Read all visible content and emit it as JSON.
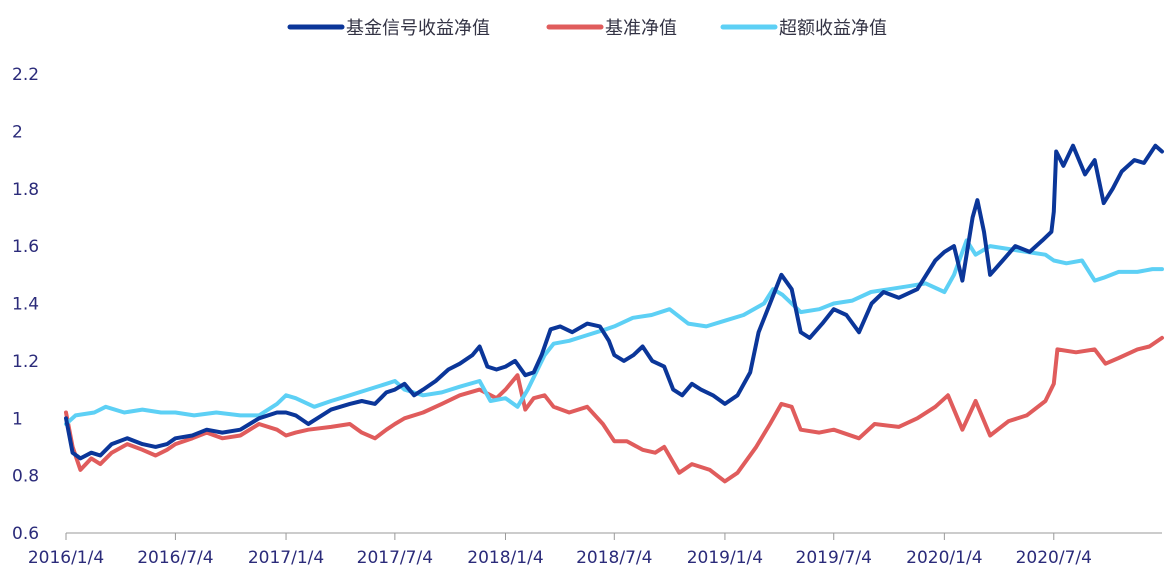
{
  "chart_data": {
    "type": "line",
    "title": "",
    "xlabel": "",
    "ylabel": "",
    "ylim": [
      0.6,
      2.2
    ],
    "yticks": [
      0.6,
      0.8,
      1,
      1.2,
      1.4,
      1.6,
      1.8,
      2,
      2.2
    ],
    "ytick_labels": [
      "0.6",
      "0.8",
      "1",
      "1.2",
      "1.4",
      "1.6",
      "1.8",
      "2",
      "2.2"
    ],
    "xlim": [
      "2016-01-04",
      "2020-12-31"
    ],
    "xticks": [
      "2016-01-04",
      "2016-07-04",
      "2017-01-04",
      "2017-07-04",
      "2018-01-04",
      "2018-07-04",
      "2019-01-04",
      "2019-07-04",
      "2020-01-04",
      "2020-07-04"
    ],
    "xtick_labels": [
      "2016/1/4",
      "2016/7/4",
      "2017/1/4",
      "2017/7/4",
      "2018/1/4",
      "2018/7/4",
      "2019/1/4",
      "2019/7/4",
      "2020/1/4",
      "2020/7/4"
    ],
    "grid": false,
    "legend_position": "top",
    "series": [
      {
        "name": "基金信号收益净值",
        "color": "#0b3699",
        "points": [
          [
            "2016-01-04",
            1.0
          ],
          [
            "2016-01-15",
            0.88
          ],
          [
            "2016-01-28",
            0.86
          ],
          [
            "2016-02-15",
            0.88
          ],
          [
            "2016-03-01",
            0.87
          ],
          [
            "2016-03-20",
            0.91
          ],
          [
            "2016-04-15",
            0.93
          ],
          [
            "2016-05-10",
            0.91
          ],
          [
            "2016-06-01",
            0.9
          ],
          [
            "2016-06-20",
            0.91
          ],
          [
            "2016-07-04",
            0.93
          ],
          [
            "2016-08-01",
            0.94
          ],
          [
            "2016-08-25",
            0.96
          ],
          [
            "2016-09-20",
            0.95
          ],
          [
            "2016-10-20",
            0.96
          ],
          [
            "2016-11-20",
            1.0
          ],
          [
            "2016-12-20",
            1.02
          ],
          [
            "2017-01-04",
            1.02
          ],
          [
            "2017-01-20",
            1.01
          ],
          [
            "2017-02-10",
            0.98
          ],
          [
            "2017-02-25",
            1.0
          ],
          [
            "2017-03-20",
            1.03
          ],
          [
            "2017-04-20",
            1.05
          ],
          [
            "2017-05-10",
            1.06
          ],
          [
            "2017-06-01",
            1.05
          ],
          [
            "2017-06-20",
            1.09
          ],
          [
            "2017-07-04",
            1.1
          ],
          [
            "2017-07-20",
            1.12
          ],
          [
            "2017-08-05",
            1.08
          ],
          [
            "2017-08-20",
            1.1
          ],
          [
            "2017-09-10",
            1.13
          ],
          [
            "2017-10-01",
            1.17
          ],
          [
            "2017-10-20",
            1.19
          ],
          [
            "2017-11-10",
            1.22
          ],
          [
            "2017-11-22",
            1.25
          ],
          [
            "2017-12-05",
            1.18
          ],
          [
            "2017-12-20",
            1.17
          ],
          [
            "2018-01-04",
            1.18
          ],
          [
            "2018-01-20",
            1.2
          ],
          [
            "2018-02-06",
            1.15
          ],
          [
            "2018-02-20",
            1.16
          ],
          [
            "2018-03-05",
            1.22
          ],
          [
            "2018-03-20",
            1.31
          ],
          [
            "2018-04-05",
            1.32
          ],
          [
            "2018-04-25",
            1.3
          ],
          [
            "2018-05-20",
            1.33
          ],
          [
            "2018-06-10",
            1.32
          ],
          [
            "2018-06-25",
            1.27
          ],
          [
            "2018-07-04",
            1.22
          ],
          [
            "2018-07-20",
            1.2
          ],
          [
            "2018-08-05",
            1.22
          ],
          [
            "2018-08-20",
            1.25
          ],
          [
            "2018-09-05",
            1.2
          ],
          [
            "2018-09-25",
            1.18
          ],
          [
            "2018-10-10",
            1.1
          ],
          [
            "2018-10-25",
            1.08
          ],
          [
            "2018-11-10",
            1.12
          ],
          [
            "2018-11-25",
            1.1
          ],
          [
            "2018-12-15",
            1.08
          ],
          [
            "2019-01-04",
            1.05
          ],
          [
            "2019-01-25",
            1.08
          ],
          [
            "2019-02-15",
            1.16
          ],
          [
            "2019-03-01",
            1.3
          ],
          [
            "2019-03-20",
            1.4
          ],
          [
            "2019-04-08",
            1.5
          ],
          [
            "2019-04-25",
            1.45
          ],
          [
            "2019-05-10",
            1.3
          ],
          [
            "2019-05-25",
            1.28
          ],
          [
            "2019-06-15",
            1.33
          ],
          [
            "2019-07-04",
            1.38
          ],
          [
            "2019-07-25",
            1.36
          ],
          [
            "2019-08-15",
            1.3
          ],
          [
            "2019-09-05",
            1.4
          ],
          [
            "2019-09-25",
            1.44
          ],
          [
            "2019-10-20",
            1.42
          ],
          [
            "2019-11-20",
            1.45
          ],
          [
            "2019-12-20",
            1.55
          ],
          [
            "2020-01-04",
            1.58
          ],
          [
            "2020-01-20",
            1.6
          ],
          [
            "2020-02-03",
            1.48
          ],
          [
            "2020-02-20",
            1.7
          ],
          [
            "2020-02-28",
            1.76
          ],
          [
            "2020-03-10",
            1.65
          ],
          [
            "2020-03-20",
            1.5
          ],
          [
            "2020-04-10",
            1.55
          ],
          [
            "2020-05-01",
            1.6
          ],
          [
            "2020-05-25",
            1.58
          ],
          [
            "2020-06-15",
            1.62
          ],
          [
            "2020-06-30",
            1.65
          ],
          [
            "2020-07-04",
            1.72
          ],
          [
            "2020-07-08",
            1.93
          ],
          [
            "2020-07-20",
            1.88
          ],
          [
            "2020-08-05",
            1.95
          ],
          [
            "2020-08-25",
            1.85
          ],
          [
            "2020-09-10",
            1.9
          ],
          [
            "2020-09-25",
            1.75
          ],
          [
            "2020-10-10",
            1.8
          ],
          [
            "2020-10-25",
            1.86
          ],
          [
            "2020-11-15",
            1.9
          ],
          [
            "2020-12-01",
            1.89
          ],
          [
            "2020-12-20",
            1.95
          ],
          [
            "2020-12-31",
            1.93
          ]
        ]
      },
      {
        "name": "基准净值",
        "color": "#e05c5c",
        "points": [
          [
            "2016-01-04",
            1.02
          ],
          [
            "2016-01-15",
            0.9
          ],
          [
            "2016-01-28",
            0.82
          ],
          [
            "2016-02-15",
            0.86
          ],
          [
            "2016-03-01",
            0.84
          ],
          [
            "2016-03-20",
            0.88
          ],
          [
            "2016-04-15",
            0.91
          ],
          [
            "2016-05-10",
            0.89
          ],
          [
            "2016-06-01",
            0.87
          ],
          [
            "2016-06-20",
            0.89
          ],
          [
            "2016-07-04",
            0.91
          ],
          [
            "2016-08-01",
            0.93
          ],
          [
            "2016-08-25",
            0.95
          ],
          [
            "2016-09-20",
            0.93
          ],
          [
            "2016-10-20",
            0.94
          ],
          [
            "2016-11-20",
            0.98
          ],
          [
            "2016-12-20",
            0.96
          ],
          [
            "2017-01-04",
            0.94
          ],
          [
            "2017-01-20",
            0.95
          ],
          [
            "2017-02-10",
            0.96
          ],
          [
            "2017-03-20",
            0.97
          ],
          [
            "2017-04-20",
            0.98
          ],
          [
            "2017-05-10",
            0.95
          ],
          [
            "2017-06-01",
            0.93
          ],
          [
            "2017-06-20",
            0.96
          ],
          [
            "2017-07-04",
            0.98
          ],
          [
            "2017-07-20",
            1.0
          ],
          [
            "2017-08-20",
            1.02
          ],
          [
            "2017-09-20",
            1.05
          ],
          [
            "2017-10-20",
            1.08
          ],
          [
            "2017-11-22",
            1.1
          ],
          [
            "2017-12-20",
            1.07
          ],
          [
            "2018-01-04",
            1.1
          ],
          [
            "2018-01-24",
            1.15
          ],
          [
            "2018-02-06",
            1.03
          ],
          [
            "2018-02-20",
            1.07
          ],
          [
            "2018-03-10",
            1.08
          ],
          [
            "2018-03-25",
            1.04
          ],
          [
            "2018-04-20",
            1.02
          ],
          [
            "2018-05-20",
            1.04
          ],
          [
            "2018-06-15",
            0.98
          ],
          [
            "2018-07-04",
            0.92
          ],
          [
            "2018-07-25",
            0.92
          ],
          [
            "2018-08-20",
            0.89
          ],
          [
            "2018-09-10",
            0.88
          ],
          [
            "2018-09-25",
            0.9
          ],
          [
            "2018-10-20",
            0.81
          ],
          [
            "2018-11-10",
            0.84
          ],
          [
            "2018-12-10",
            0.82
          ],
          [
            "2019-01-04",
            0.78
          ],
          [
            "2019-01-25",
            0.81
          ],
          [
            "2019-02-25",
            0.9
          ],
          [
            "2019-03-20",
            0.98
          ],
          [
            "2019-04-08",
            1.05
          ],
          [
            "2019-04-25",
            1.04
          ],
          [
            "2019-05-10",
            0.96
          ],
          [
            "2019-06-10",
            0.95
          ],
          [
            "2019-07-04",
            0.96
          ],
          [
            "2019-08-15",
            0.93
          ],
          [
            "2019-09-10",
            0.98
          ],
          [
            "2019-10-20",
            0.97
          ],
          [
            "2019-11-20",
            1.0
          ],
          [
            "2019-12-20",
            1.04
          ],
          [
            "2020-01-10",
            1.08
          ],
          [
            "2020-02-03",
            0.96
          ],
          [
            "2020-02-25",
            1.06
          ],
          [
            "2020-03-20",
            0.94
          ],
          [
            "2020-04-20",
            0.99
          ],
          [
            "2020-05-20",
            1.01
          ],
          [
            "2020-06-20",
            1.06
          ],
          [
            "2020-07-04",
            1.12
          ],
          [
            "2020-07-10",
            1.24
          ],
          [
            "2020-08-10",
            1.23
          ],
          [
            "2020-09-10",
            1.24
          ],
          [
            "2020-09-28",
            1.19
          ],
          [
            "2020-10-20",
            1.21
          ],
          [
            "2020-11-20",
            1.24
          ],
          [
            "2020-12-10",
            1.25
          ],
          [
            "2020-12-31",
            1.28
          ]
        ]
      },
      {
        "name": "超额收益净值",
        "color": "#5dd0f5",
        "points": [
          [
            "2016-01-04",
            0.98
          ],
          [
            "2016-01-20",
            1.01
          ],
          [
            "2016-02-20",
            1.02
          ],
          [
            "2016-03-10",
            1.04
          ],
          [
            "2016-04-10",
            1.02
          ],
          [
            "2016-05-10",
            1.03
          ],
          [
            "2016-06-10",
            1.02
          ],
          [
            "2016-07-04",
            1.02
          ],
          [
            "2016-08-04",
            1.01
          ],
          [
            "2016-09-10",
            1.02
          ],
          [
            "2016-10-20",
            1.01
          ],
          [
            "2016-11-20",
            1.01
          ],
          [
            "2016-12-20",
            1.05
          ],
          [
            "2017-01-04",
            1.08
          ],
          [
            "2017-01-20",
            1.07
          ],
          [
            "2017-02-20",
            1.04
          ],
          [
            "2017-03-20",
            1.06
          ],
          [
            "2017-04-20",
            1.08
          ],
          [
            "2017-05-20",
            1.1
          ],
          [
            "2017-06-20",
            1.12
          ],
          [
            "2017-07-04",
            1.13
          ],
          [
            "2017-07-20",
            1.1
          ],
          [
            "2017-08-20",
            1.08
          ],
          [
            "2017-09-20",
            1.09
          ],
          [
            "2017-10-20",
            1.11
          ],
          [
            "2017-11-22",
            1.13
          ],
          [
            "2017-12-10",
            1.06
          ],
          [
            "2018-01-04",
            1.07
          ],
          [
            "2018-01-24",
            1.04
          ],
          [
            "2018-02-10",
            1.1
          ],
          [
            "2018-03-10",
            1.22
          ],
          [
            "2018-03-25",
            1.26
          ],
          [
            "2018-04-20",
            1.27
          ],
          [
            "2018-05-20",
            1.29
          ],
          [
            "2018-06-20",
            1.31
          ],
          [
            "2018-07-04",
            1.32
          ],
          [
            "2018-08-04",
            1.35
          ],
          [
            "2018-09-04",
            1.36
          ],
          [
            "2018-10-04",
            1.38
          ],
          [
            "2018-11-04",
            1.33
          ],
          [
            "2018-12-04",
            1.32
          ],
          [
            "2019-01-04",
            1.34
          ],
          [
            "2019-02-04",
            1.36
          ],
          [
            "2019-03-10",
            1.4
          ],
          [
            "2019-03-25",
            1.45
          ],
          [
            "2019-04-10",
            1.43
          ],
          [
            "2019-05-10",
            1.37
          ],
          [
            "2019-06-10",
            1.38
          ],
          [
            "2019-07-04",
            1.4
          ],
          [
            "2019-08-04",
            1.41
          ],
          [
            "2019-09-04",
            1.44
          ],
          [
            "2019-10-04",
            1.45
          ],
          [
            "2019-11-04",
            1.46
          ],
          [
            "2019-12-04",
            1.47
          ],
          [
            "2020-01-04",
            1.44
          ],
          [
            "2020-01-20",
            1.5
          ],
          [
            "2020-02-10",
            1.62
          ],
          [
            "2020-02-25",
            1.57
          ],
          [
            "2020-03-20",
            1.6
          ],
          [
            "2020-04-20",
            1.59
          ],
          [
            "2020-05-20",
            1.58
          ],
          [
            "2020-06-20",
            1.57
          ],
          [
            "2020-07-04",
            1.55
          ],
          [
            "2020-07-25",
            1.54
          ],
          [
            "2020-08-20",
            1.55
          ],
          [
            "2020-09-10",
            1.48
          ],
          [
            "2020-09-25",
            1.49
          ],
          [
            "2020-10-20",
            1.51
          ],
          [
            "2020-11-20",
            1.51
          ],
          [
            "2020-12-15",
            1.52
          ],
          [
            "2020-12-31",
            1.52
          ]
        ]
      }
    ]
  }
}
